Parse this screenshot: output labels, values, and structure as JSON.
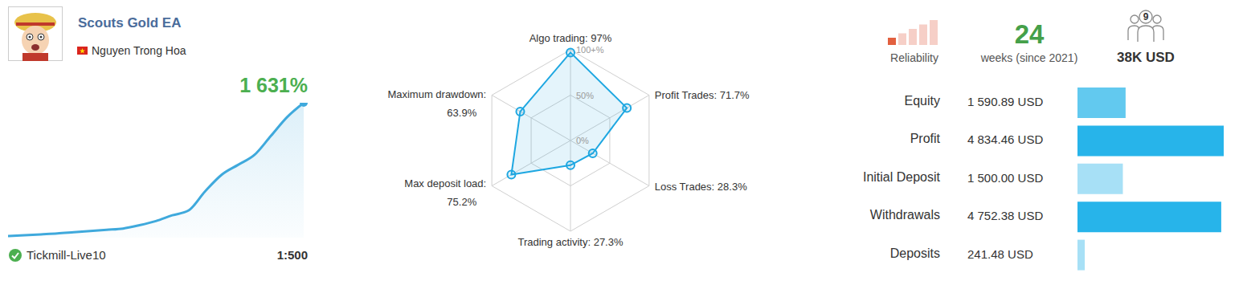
{
  "header": {
    "title": "Scouts Gold EA",
    "author": "Nguyen Trong Hoa",
    "server": "Tickmill-Live10",
    "leverage": "1:500"
  },
  "stats": {
    "reliability_label": "Reliability",
    "reliability_level": 1,
    "weeks": 24,
    "weeks_label": "weeks (since 2021)",
    "subscribers": 9,
    "funds": "38K USD"
  },
  "chart_data": [
    {
      "type": "area",
      "title": "1 631%",
      "categories": [
        null,
        null,
        null,
        null,
        null,
        null,
        null,
        null,
        null,
        null,
        null,
        null,
        null,
        null,
        null,
        null,
        null,
        null,
        null
      ],
      "values": [
        20,
        30,
        40,
        50,
        65,
        80,
        95,
        110,
        150,
        200,
        270,
        330,
        560,
        760,
        880,
        1000,
        1230,
        1460,
        1631
      ],
      "ylim": [
        0,
        1631
      ],
      "tick_labels": false,
      "color": "#3fa9dc"
    },
    {
      "type": "radar",
      "categories": [
        "Algo trading:",
        "Profit Trades:",
        "Loss Trades:",
        "Trading activity:",
        "Max deposit load:",
        "Maximum drawdown:"
      ],
      "values": [
        97,
        71.7,
        28.3,
        27.3,
        75.2,
        63.9
      ],
      "value_labels": [
        "97%",
        "71.7%",
        "28.3%",
        "27.3%",
        "75.2%",
        "63.9%"
      ],
      "ylim": [
        0,
        100
      ],
      "yticks": [
        {
          "value": 0,
          "label": "0%"
        },
        {
          "value": 50,
          "label": "50%"
        },
        {
          "value": 100,
          "label": "100+%"
        }
      ],
      "grid": true,
      "data_labels": true,
      "color": "#1ea7e1"
    },
    {
      "type": "bar",
      "orientation": "horizontal",
      "categories": [
        "Equity",
        "Profit",
        "Initial Deposit",
        "Withdrawals",
        "Deposits"
      ],
      "values": [
        1590.89,
        4834.46,
        1500.0,
        4752.38,
        241.48
      ],
      "value_labels": [
        "1 590.89 USD",
        "4 834.46 USD",
        "1 500.00 USD",
        "4 752.38 USD",
        "241.48 USD"
      ],
      "xlim": [
        0,
        4834.46
      ],
      "tick_labels": false,
      "data_labels": true,
      "colors": [
        "#62c9ef",
        "#27b4ea",
        "#a7e0f6",
        "#27b4ea",
        "#a7e0f6"
      ]
    }
  ]
}
